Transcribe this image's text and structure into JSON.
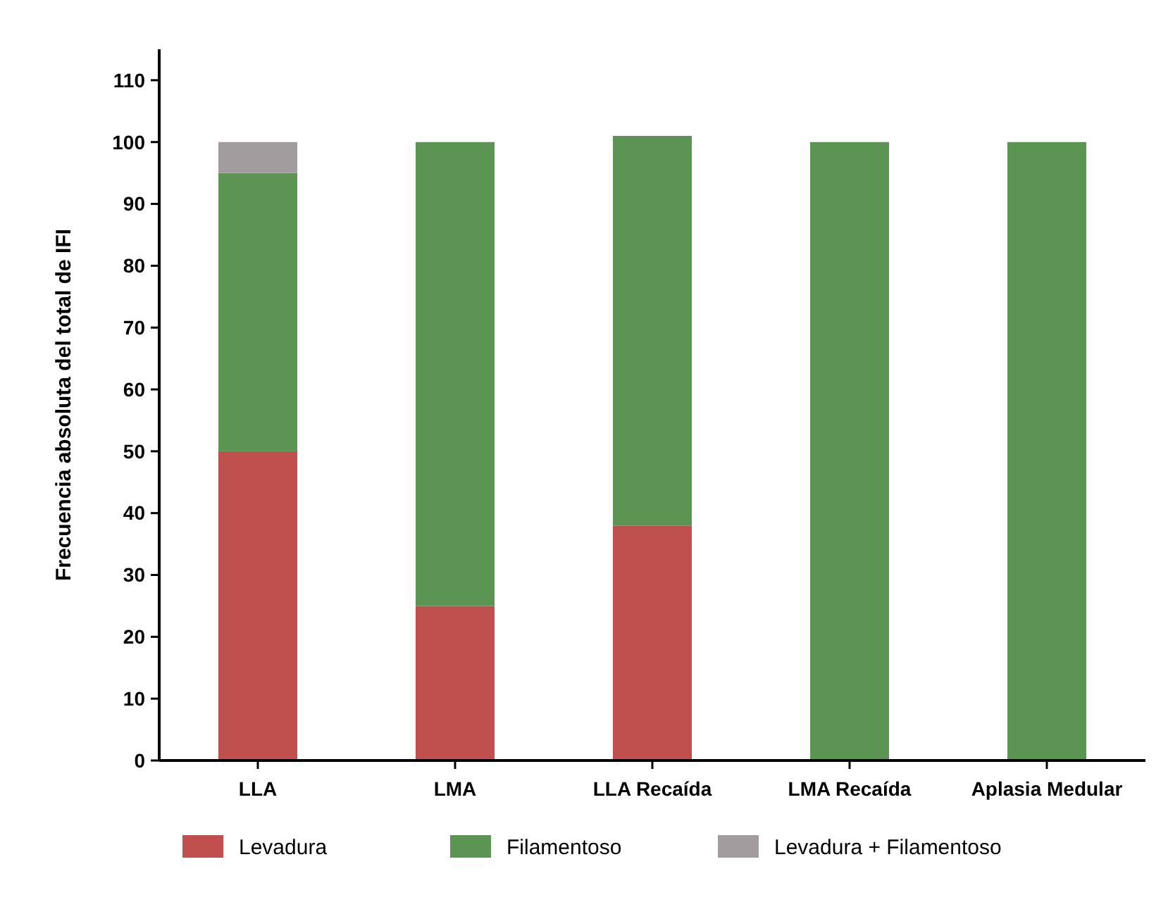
{
  "chart_data": {
    "type": "bar",
    "stacked": true,
    "ylabel": "Frecuencia absoluta del total de IFI",
    "categories": [
      "LLA",
      "LMA",
      "LLA Recaída",
      "LMA Recaída",
      "Aplasia Medular"
    ],
    "series": [
      {
        "name": "Levadura",
        "color": "#c0504d",
        "values": [
          50,
          25,
          38,
          0,
          0
        ]
      },
      {
        "name": "Filamentoso",
        "color": "#5b9453",
        "values": [
          45,
          75,
          63,
          100,
          100
        ]
      },
      {
        "name": "Levadura + Filamentoso",
        "color": "#a39c9e",
        "values": [
          5,
          0,
          0,
          0,
          0
        ]
      }
    ],
    "ylim": [
      0,
      115
    ],
    "yticks": [
      0,
      10,
      20,
      30,
      40,
      50,
      60,
      70,
      80,
      90,
      100,
      110
    ],
    "grid": false,
    "legend": "bottom"
  }
}
